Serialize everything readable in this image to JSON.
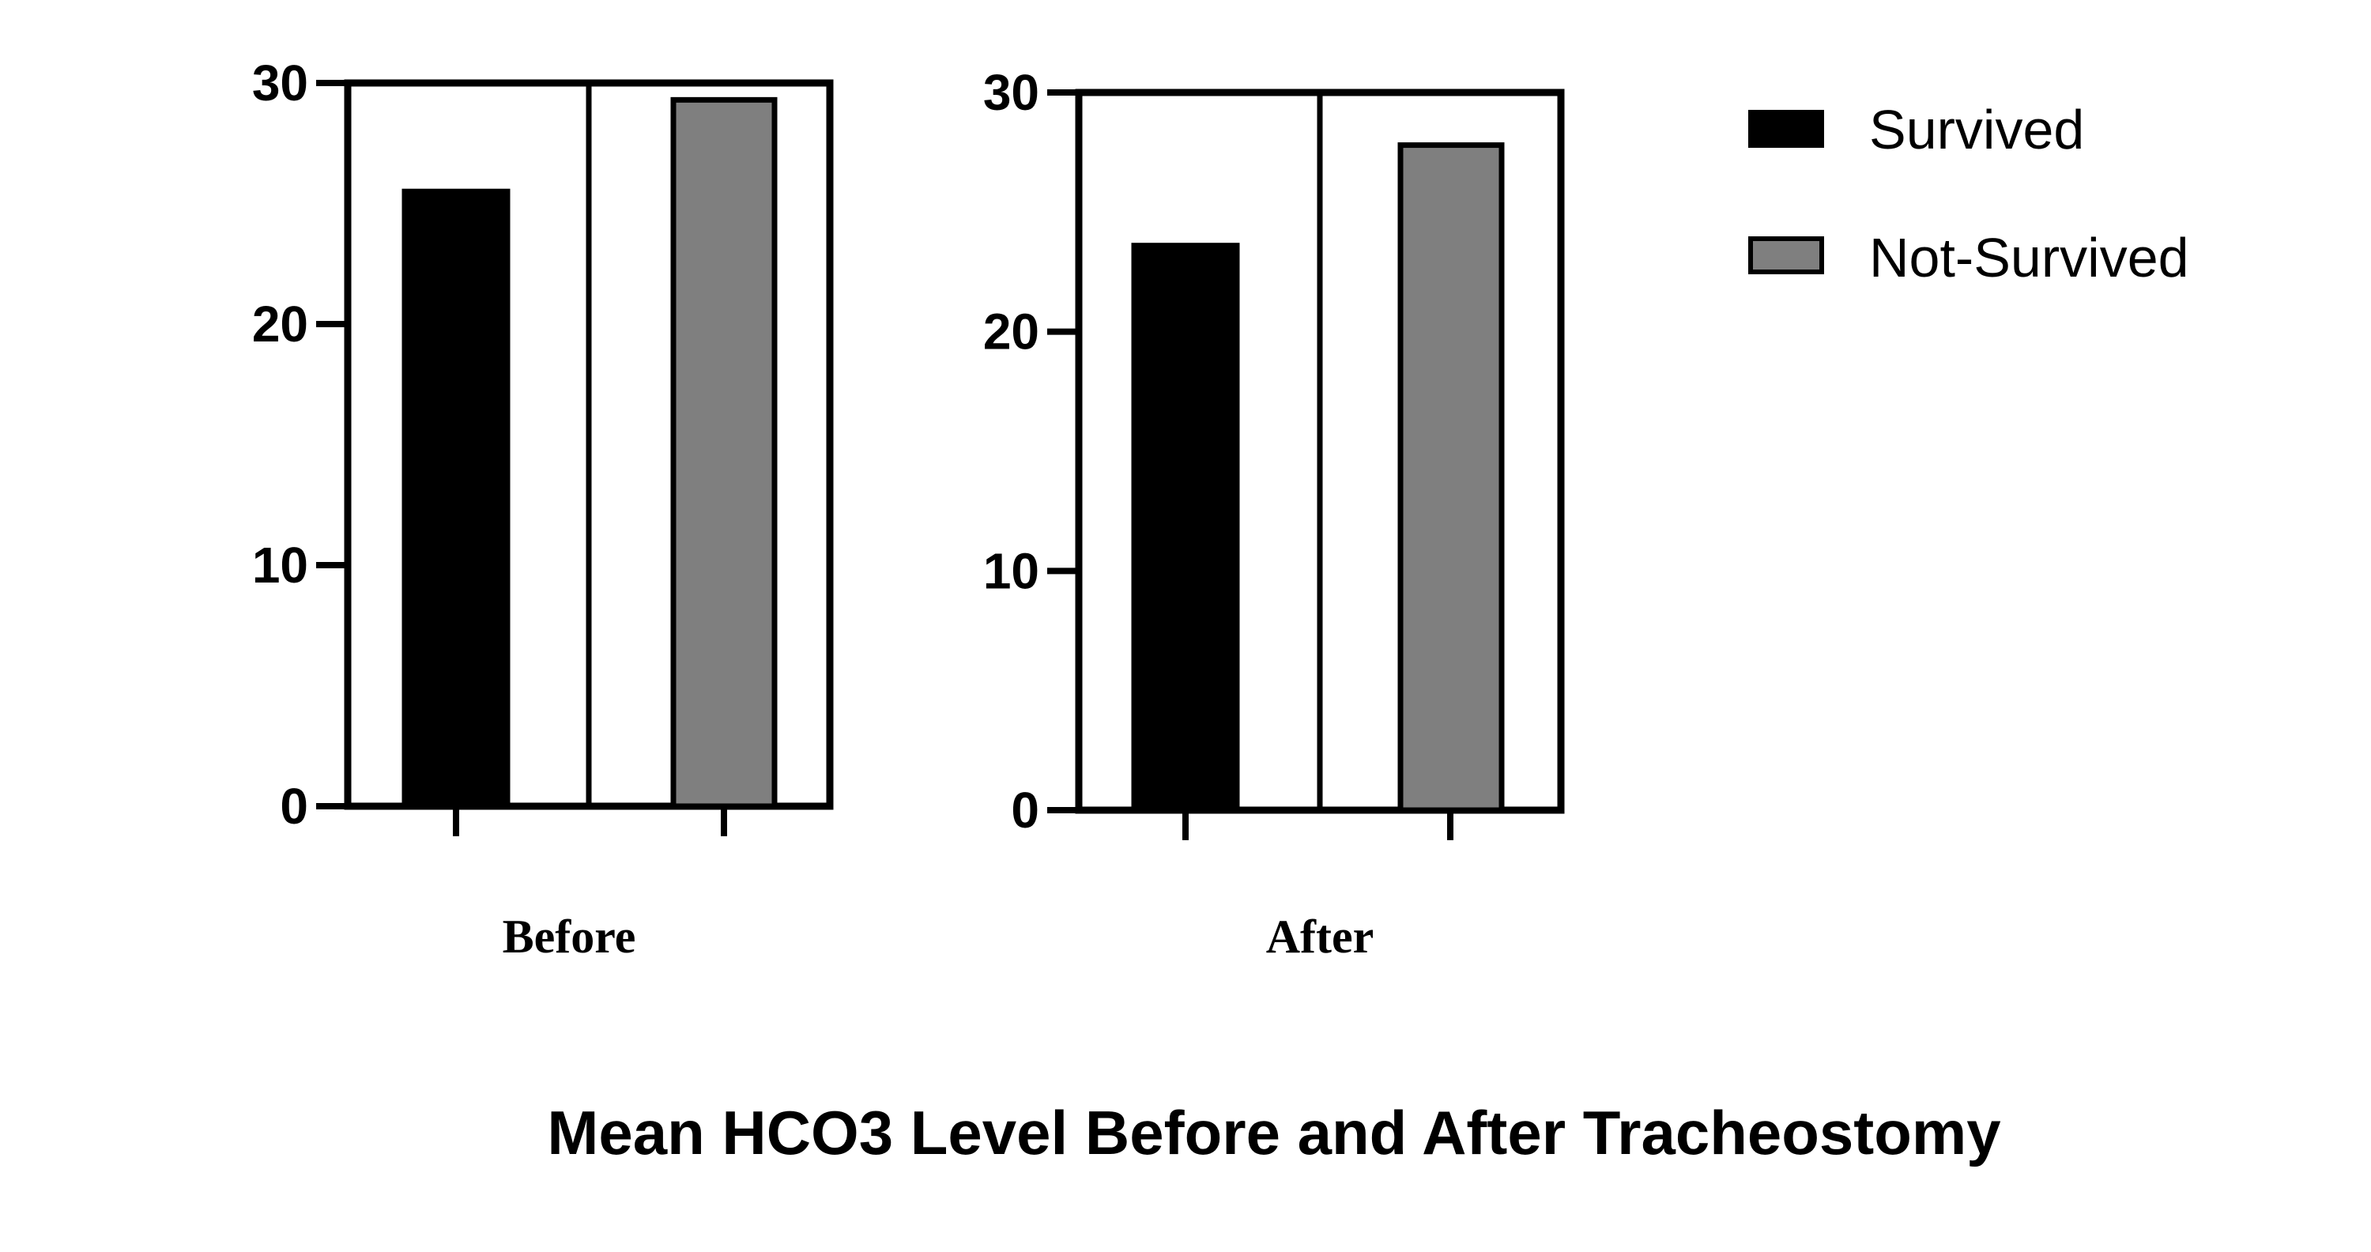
{
  "chart_data": {
    "type": "bar",
    "title": "Mean HCO3 Level Before and After Tracheostomy",
    "series_names": [
      "Survived",
      "Not-Survived"
    ],
    "colors": {
      "Survived": "#000000",
      "Not-Survived": "#7f7f7f"
    },
    "legend_position": "top-right",
    "panels": [
      {
        "label": "Before",
        "ylim": [
          0,
          30
        ],
        "yticks": [
          "0",
          "10",
          "20",
          "30"
        ],
        "values": {
          "Survived": 25.5,
          "Not-Survived": 29.3
        }
      },
      {
        "label": "After",
        "ylim": [
          0,
          30
        ],
        "yticks": [
          "0",
          "10",
          "20",
          "30"
        ],
        "values": {
          "Survived": 23.6,
          "Not-Survived": 27.8
        }
      }
    ]
  }
}
